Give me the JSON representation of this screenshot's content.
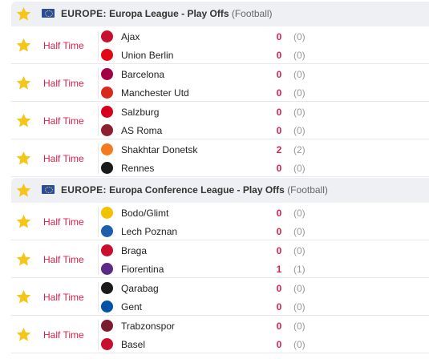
{
  "colors": {
    "star": "#f5c518",
    "live": "#d8224a",
    "header_bg": "#eef0f3",
    "divider": "#e6e8eb"
  },
  "icons": {
    "favorite": "star-icon",
    "region": "europe-flag-icon"
  },
  "leagues": [
    {
      "country": "EUROPE:",
      "name": "Europa League - Play Offs",
      "sport": "(Football)",
      "matches": [
        {
          "status": "Half Time",
          "home": {
            "name": "Ajax",
            "score": "0",
            "ht": "(0)",
            "logo_color": "#c8102e",
            "score_color": "#d8224a"
          },
          "away": {
            "name": "Union Berlin",
            "score": "0",
            "ht": "(0)",
            "logo_color": "#e30613",
            "score_color": "#d8224a"
          }
        },
        {
          "status": "Half Time",
          "home": {
            "name": "Barcelona",
            "score": "0",
            "ht": "(0)",
            "logo_color": "#a50044",
            "score_color": "#d8224a"
          },
          "away": {
            "name": "Manchester Utd",
            "score": "0",
            "ht": "(0)",
            "logo_color": "#da291c",
            "score_color": "#d8224a"
          }
        },
        {
          "status": "Half Time",
          "home": {
            "name": "Salzburg",
            "score": "0",
            "ht": "(0)",
            "logo_color": "#d6001c",
            "score_color": "#d8224a"
          },
          "away": {
            "name": "AS Roma",
            "score": "0",
            "ht": "(0)",
            "logo_color": "#8e1f2f",
            "score_color": "#d8224a"
          }
        },
        {
          "status": "Half Time",
          "home": {
            "name": "Shakhtar Donetsk",
            "score": "2",
            "ht": "(2)",
            "logo_color": "#f47a20",
            "score_color": "#d8224a"
          },
          "away": {
            "name": "Rennes",
            "score": "0",
            "ht": "(0)",
            "logo_color": "#1a1a1a",
            "score_color": "#d8224a"
          }
        }
      ]
    },
    {
      "country": "EUROPE:",
      "name": "Europa Conference League - Play Offs",
      "sport": "(Football)",
      "matches": [
        {
          "status": "Half Time",
          "home": {
            "name": "Bodo/Glimt",
            "score": "0",
            "ht": "(0)",
            "logo_color": "#f2c200",
            "score_color": "#d8224a"
          },
          "away": {
            "name": "Lech Poznan",
            "score": "0",
            "ht": "(0)",
            "logo_color": "#1b5fae",
            "score_color": "#d8224a"
          }
        },
        {
          "status": "Half Time",
          "home": {
            "name": "Braga",
            "score": "0",
            "ht": "(0)",
            "logo_color": "#c8102e",
            "score_color": "#d8224a"
          },
          "away": {
            "name": "Fiorentina",
            "score": "1",
            "ht": "(1)",
            "logo_color": "#5b2a86",
            "score_color": "#d8224a"
          }
        },
        {
          "status": "Half Time",
          "home": {
            "name": "Qarabag",
            "score": "0",
            "ht": "(0)",
            "logo_color": "#1a1a1a",
            "score_color": "#d8224a"
          },
          "away": {
            "name": "Gent",
            "score": "0",
            "ht": "(0)",
            "logo_color": "#0054a6",
            "score_color": "#d8224a"
          }
        },
        {
          "status": "Half Time",
          "home": {
            "name": "Trabzonspor",
            "score": "0",
            "ht": "(0)",
            "logo_color": "#7b1c2e",
            "score_color": "#d8224a"
          },
          "away": {
            "name": "Basel",
            "score": "0",
            "ht": "(0)",
            "logo_color": "#c8102e",
            "score_color": "#d8224a"
          }
        }
      ]
    }
  ]
}
